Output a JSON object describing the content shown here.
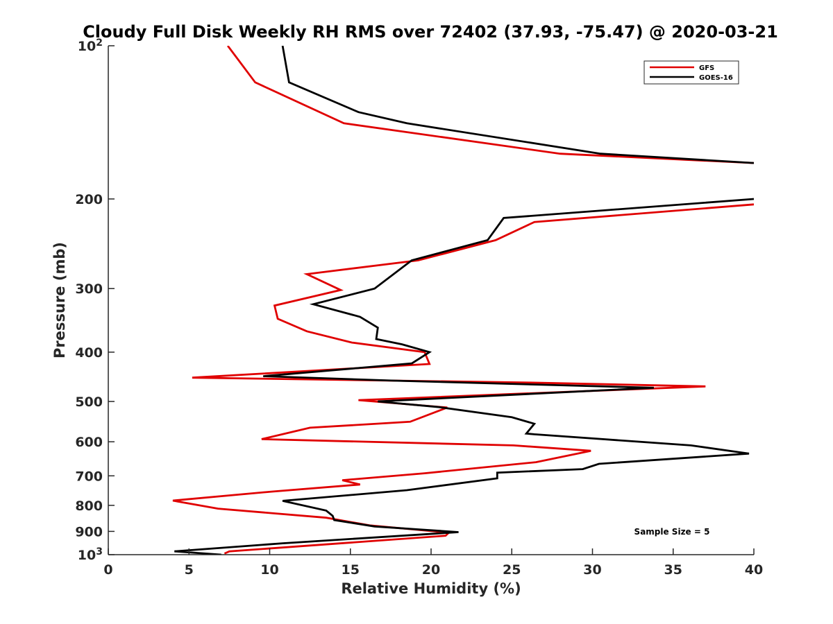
{
  "chart_data": {
    "type": "line",
    "title": "Cloudy Full Disk Weekly RH RMS over 72402 (37.93, -75.47) @ 2020-03-21",
    "xlabel": "Relative Humidity (%)",
    "ylabel": "Pressure (mb)",
    "xlim": [
      0,
      40
    ],
    "ylim": [
      100,
      1000
    ],
    "yscale": "log",
    "y_reversed": true,
    "grid": false,
    "legend_position": "top-right",
    "x_ticks": [
      "0",
      "5",
      "10",
      "15",
      "20",
      "25",
      "30",
      "35",
      "40"
    ],
    "y_ticks": [
      {
        "value": 100,
        "base": "10",
        "exp": "2"
      },
      {
        "value": 200,
        "label": "200"
      },
      {
        "value": 300,
        "label": "300"
      },
      {
        "value": 400,
        "label": "400"
      },
      {
        "value": 500,
        "label": "500"
      },
      {
        "value": 600,
        "label": "600"
      },
      {
        "value": 700,
        "label": "700"
      },
      {
        "value": 800,
        "label": "800"
      },
      {
        "value": 900,
        "label": "900"
      },
      {
        "value": 1000,
        "base": "10",
        "exp": "3"
      }
    ],
    "annotation": "Sample Size = 5",
    "series": [
      {
        "name": "GFS",
        "color": "#e00000",
        "points": [
          [
            7.4,
            100
          ],
          [
            9.1,
            118
          ],
          [
            14.6,
            142
          ],
          [
            28,
            163
          ],
          [
            40,
            170
          ],
          [
            null,
            null
          ],
          [
            40,
            205
          ],
          [
            26.4,
            222
          ],
          [
            24,
            241
          ],
          [
            19.2,
            264
          ],
          [
            12.3,
            281
          ],
          [
            14.4,
            302
          ],
          [
            10.3,
            324
          ],
          [
            10.5,
            344
          ],
          [
            12.3,
            364
          ],
          [
            15.1,
            383
          ],
          [
            19.6,
            400
          ],
          [
            19.9,
            422
          ],
          [
            5.2,
            449
          ],
          [
            26,
            459
          ],
          [
            37,
            467
          ],
          [
            15.5,
            497
          ],
          [
            21,
            514
          ],
          [
            18.7,
            548
          ],
          [
            12.5,
            563
          ],
          [
            9.5,
            593
          ],
          [
            25.1,
            610
          ],
          [
            29.9,
            625
          ],
          [
            26.5,
            658
          ],
          [
            19.6,
            692
          ],
          [
            14.5,
            714
          ],
          [
            15.6,
            728
          ],
          [
            10.1,
            752
          ],
          [
            7.3,
            766
          ],
          [
            4,
            783
          ],
          [
            6.8,
            812
          ],
          [
            13.5,
            846
          ],
          [
            16.2,
            876
          ],
          [
            21.1,
            905
          ],
          [
            20.9,
            918
          ],
          [
            7.5,
            985
          ],
          [
            7.2,
            995
          ]
        ]
      },
      {
        "name": "GOES-16",
        "color": "#000000",
        "points": [
          [
            10.8,
            100
          ],
          [
            11.2,
            118
          ],
          [
            15.5,
            135
          ],
          [
            18.5,
            142
          ],
          [
            30.5,
            163
          ],
          [
            40,
            170
          ],
          [
            null,
            null
          ],
          [
            40,
            200
          ],
          [
            24.5,
            218
          ],
          [
            23.5,
            241
          ],
          [
            18.8,
            264
          ],
          [
            16.5,
            300
          ],
          [
            12.7,
            322
          ],
          [
            15.6,
            341
          ],
          [
            16.7,
            358
          ],
          [
            16.6,
            377
          ],
          [
            18.2,
            386
          ],
          [
            19.9,
            400
          ],
          [
            18.8,
            421
          ],
          [
            9.6,
            446
          ],
          [
            17.7,
            455
          ],
          [
            33.8,
            470
          ],
          [
            16.7,
            500
          ],
          [
            20.5,
            513
          ],
          [
            25,
            537
          ],
          [
            26.4,
            553
          ],
          [
            25.9,
            578
          ],
          [
            26.4,
            580
          ],
          [
            36.1,
            610
          ],
          [
            39.7,
            633
          ],
          [
            30.4,
            663
          ],
          [
            29.4,
            679
          ],
          [
            24.1,
            690
          ],
          [
            24.1,
            708
          ],
          [
            18.5,
            747
          ],
          [
            10.8,
            784
          ],
          [
            13.5,
            819
          ],
          [
            13.9,
            839
          ],
          [
            14,
            855
          ],
          [
            16.5,
            880
          ],
          [
            21.7,
            903
          ],
          [
            10.8,
            950
          ],
          [
            4.1,
            985
          ],
          [
            7,
            1000
          ]
        ]
      }
    ]
  }
}
